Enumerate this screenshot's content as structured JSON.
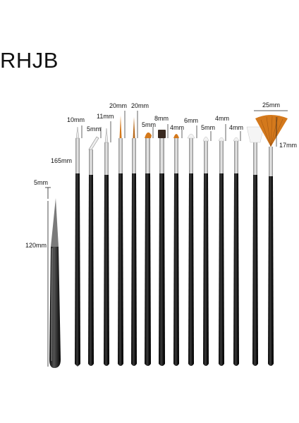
{
  "brand": "RHJB",
  "colors": {
    "handle": "#161616",
    "metal": "#cfcfcf",
    "synthetic_bristle": "#d4791c",
    "white_bristle": "#f3f3f3",
    "dark_bristle": "#3a2a20"
  },
  "measurements": {
    "pen_tip": "5mm",
    "pen_length": "120mm",
    "brush_length": "165mm",
    "b1": "10mm",
    "b2": "5mm",
    "b3": "11mm",
    "b4": "20mm",
    "b5": "20mm",
    "b6": "5mm",
    "b7": "8mm",
    "b8": "4mm",
    "b9": "6mm",
    "b10": "5mm",
    "b11": "4mm",
    "b12": "4mm",
    "b13": "25mm",
    "b14": "17mm"
  }
}
